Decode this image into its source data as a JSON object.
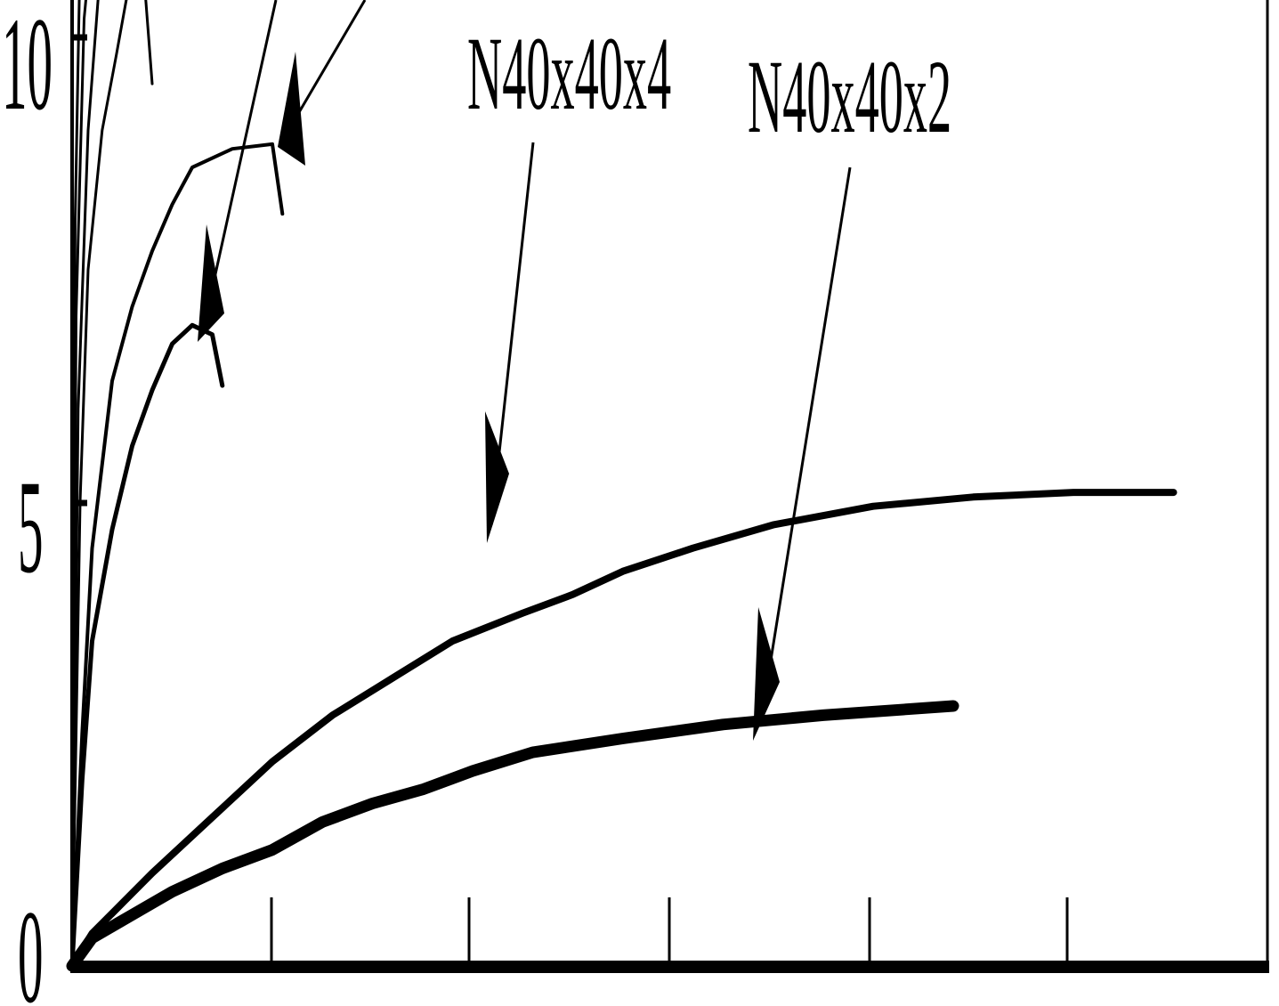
{
  "chart_data": {
    "type": "line",
    "title": "",
    "xlabel": "",
    "ylabel": "",
    "ylim": [
      0,
      10
    ],
    "y_ticks": [
      "0",
      "5",
      "10"
    ],
    "x_tick_count": 5,
    "grid": false,
    "legend": "none",
    "series": [
      {
        "name": "N40x40x2",
        "points": [
          [
            0.0,
            0.0
          ],
          [
            0.1,
            0.3
          ],
          [
            0.3,
            0.55
          ],
          [
            0.5,
            0.8
          ],
          [
            0.75,
            1.05
          ],
          [
            1.0,
            1.25
          ],
          [
            1.25,
            1.55
          ],
          [
            1.5,
            1.75
          ],
          [
            1.75,
            1.9
          ],
          [
            2.0,
            2.1
          ],
          [
            2.3,
            2.3
          ],
          [
            2.75,
            2.45
          ],
          [
            3.25,
            2.6
          ],
          [
            3.75,
            2.7
          ],
          [
            4.4,
            2.8
          ]
        ]
      },
      {
        "name": "N40x40x4",
        "points": [
          [
            0.0,
            0.0
          ],
          [
            0.1,
            0.35
          ],
          [
            0.4,
            1.0
          ],
          [
            0.7,
            1.6
          ],
          [
            1.0,
            2.2
          ],
          [
            1.3,
            2.7
          ],
          [
            1.6,
            3.1
          ],
          [
            1.9,
            3.5
          ],
          [
            2.25,
            3.8
          ],
          [
            2.5,
            4.0
          ],
          [
            2.75,
            4.25
          ],
          [
            3.1,
            4.5
          ],
          [
            3.5,
            4.75
          ],
          [
            4.0,
            4.95
          ],
          [
            4.5,
            5.05
          ],
          [
            5.0,
            5.1
          ],
          [
            5.5,
            5.1
          ]
        ]
      },
      {
        "name": "",
        "points": [
          [
            0.0,
            0.0
          ],
          [
            0.05,
            2.0
          ],
          [
            0.1,
            3.5
          ],
          [
            0.2,
            4.7
          ],
          [
            0.3,
            5.6
          ],
          [
            0.4,
            6.2
          ],
          [
            0.5,
            6.7
          ],
          [
            0.6,
            6.9
          ],
          [
            0.7,
            6.8
          ],
          [
            0.75,
            6.25
          ]
        ]
      },
      {
        "name": "",
        "points": [
          [
            0.0,
            0.0
          ],
          [
            0.05,
            2.5
          ],
          [
            0.1,
            4.5
          ],
          [
            0.2,
            6.3
          ],
          [
            0.3,
            7.1
          ],
          [
            0.4,
            7.7
          ],
          [
            0.5,
            8.2
          ],
          [
            0.6,
            8.6
          ],
          [
            0.8,
            8.8
          ],
          [
            1.0,
            8.85
          ],
          [
            1.05,
            8.1
          ]
        ]
      },
      {
        "name": "",
        "points": [
          [
            0.0,
            0.0
          ],
          [
            0.04,
            5.0
          ],
          [
            0.08,
            7.5
          ],
          [
            0.15,
            9.0
          ],
          [
            0.22,
            9.8
          ],
          [
            0.27,
            10.4
          ],
          [
            0.35,
            10.9
          ],
          [
            0.4,
            9.5
          ]
        ]
      },
      {
        "name": "",
        "points": [
          [
            0.0,
            0.0
          ],
          [
            0.03,
            6.0
          ],
          [
            0.08,
            9.0
          ],
          [
            0.14,
            10.7
          ]
        ]
      },
      {
        "name": "",
        "points": [
          [
            0.0,
            0.0
          ],
          [
            0.02,
            7.0
          ],
          [
            0.06,
            10.2
          ],
          [
            0.09,
            10.9
          ]
        ]
      },
      {
        "name": "",
        "points": [
          [
            0.0,
            0.0
          ],
          [
            0.015,
            8.0
          ],
          [
            0.04,
            10.9
          ]
        ]
      }
    ]
  },
  "labels": {
    "series_a": "N40x40x4",
    "series_b": "N40x40x2"
  },
  "colors": {
    "ink": "#000000",
    "background": "#ffffff"
  }
}
